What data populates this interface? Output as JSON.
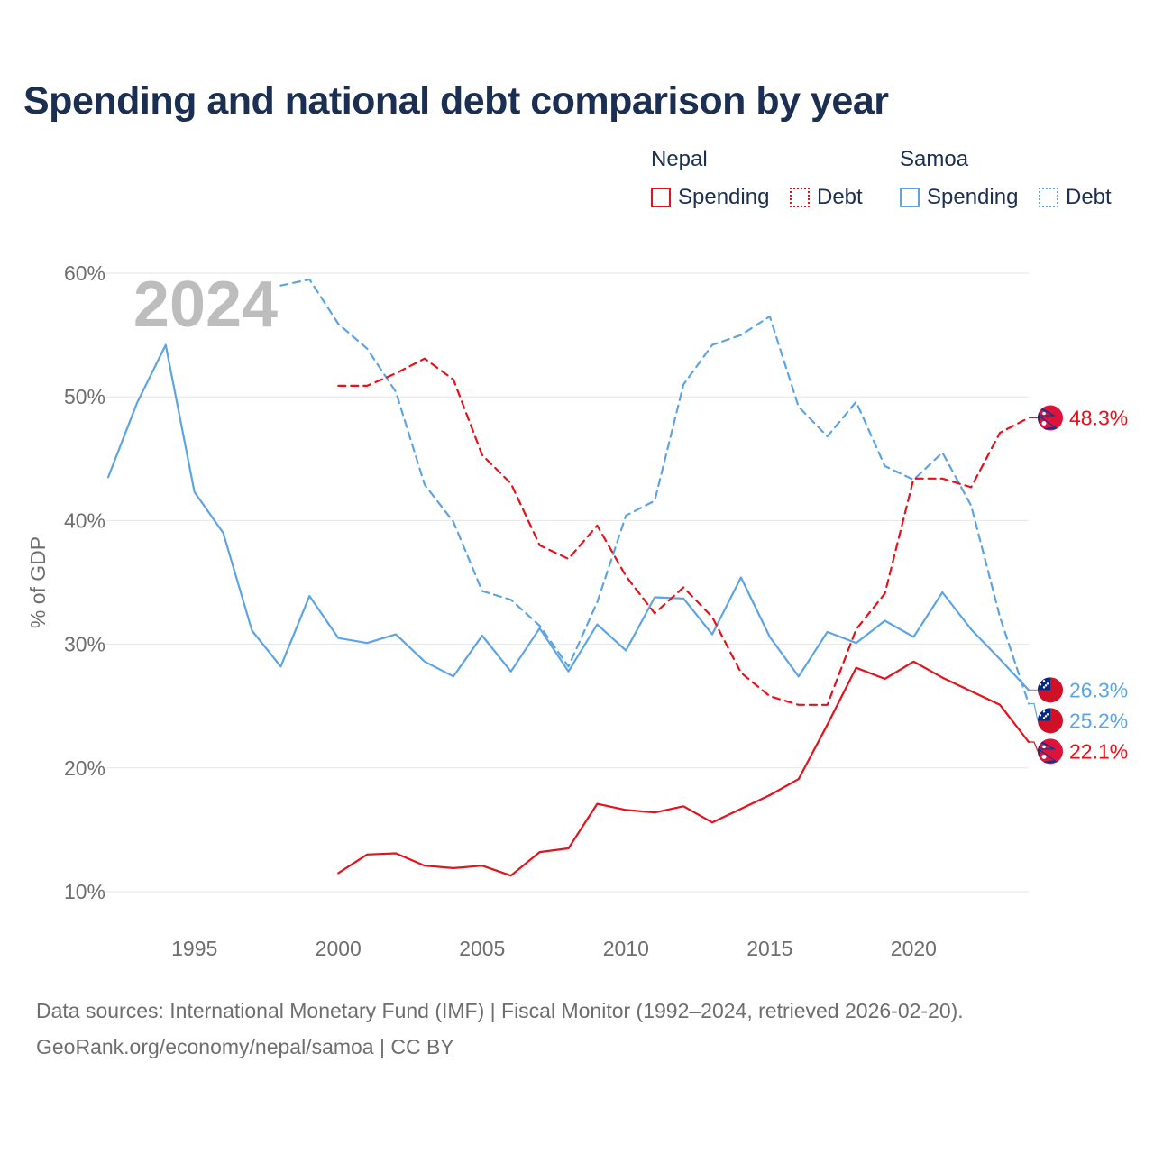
{
  "title": "Spending and national debt comparison by year",
  "legend": {
    "groups": [
      {
        "country": "Nepal",
        "color": "#e8101a",
        "items": [
          {
            "label": "Spending",
            "style": "solid"
          },
          {
            "label": "Debt",
            "style": "dotted"
          }
        ]
      },
      {
        "country": "Samoa",
        "color": "#5da4e3",
        "items": [
          {
            "label": "Spending",
            "style": "solid"
          },
          {
            "label": "Debt",
            "style": "dotted"
          }
        ]
      }
    ]
  },
  "chart_data": {
    "type": "line",
    "title": "Spending and national debt comparison by year",
    "year_watermark": "2024",
    "ylabel": "% of GDP",
    "xlabel": "",
    "xlim": [
      1992,
      2024
    ],
    "ylim": [
      10,
      60
    ],
    "xticks": [
      1995,
      2000,
      2005,
      2010,
      2015,
      2020
    ],
    "yticks": [
      10,
      20,
      30,
      40,
      50,
      60
    ],
    "ytick_labels": [
      "10%",
      "20%",
      "30%",
      "40%",
      "50%",
      "60%"
    ],
    "grid": true,
    "series": [
      {
        "name": "Samoa Spending",
        "country": "Samoa",
        "color": "#5da4e3",
        "dash": "solid",
        "x": [
          1992,
          1993,
          1994,
          1995,
          1996,
          1997,
          1998,
          1999,
          2000,
          2001,
          2002,
          2003,
          2004,
          2005,
          2006,
          2007,
          2008,
          2009,
          2010,
          2011,
          2012,
          2013,
          2014,
          2015,
          2016,
          2017,
          2018,
          2019,
          2020,
          2021,
          2022,
          2023,
          2024
        ],
        "values": [
          43.5,
          49.5,
          54.2,
          42.3,
          39.0,
          31.1,
          28.2,
          33.9,
          30.5,
          30.1,
          30.8,
          28.6,
          27.4,
          30.7,
          27.8,
          31.3,
          27.8,
          31.6,
          29.5,
          33.8,
          33.7,
          30.8,
          35.4,
          30.6,
          27.4,
          31.0,
          30.1,
          31.9,
          30.6,
          34.2,
          31.2,
          28.8,
          26.3
        ],
        "end_label": "26.3%"
      },
      {
        "name": "Samoa Debt",
        "country": "Samoa",
        "color": "#5da4e3",
        "dash": "dashed",
        "x": [
          1998,
          1999,
          2000,
          2001,
          2002,
          2003,
          2004,
          2005,
          2006,
          2007,
          2008,
          2009,
          2010,
          2011,
          2012,
          2013,
          2014,
          2015,
          2016,
          2017,
          2018,
          2019,
          2020,
          2021,
          2022,
          2023,
          2024
        ],
        "values": [
          59.0,
          59.5,
          55.9,
          53.9,
          50.4,
          42.9,
          39.9,
          34.3,
          33.6,
          31.5,
          28.2,
          33.4,
          40.4,
          41.6,
          51.0,
          54.2,
          55.0,
          56.5,
          49.2,
          46.8,
          49.6,
          44.4,
          43.3,
          45.5,
          41.2,
          32.2,
          25.2
        ],
        "end_label": "25.2%"
      },
      {
        "name": "Nepal Spending",
        "country": "Nepal",
        "color": "#e8101a",
        "dash": "solid",
        "x": [
          2000,
          2001,
          2002,
          2003,
          2004,
          2005,
          2006,
          2007,
          2008,
          2009,
          2010,
          2011,
          2012,
          2013,
          2014,
          2015,
          2016,
          2017,
          2018,
          2019,
          2020,
          2021,
          2022,
          2023,
          2024
        ],
        "values": [
          11.5,
          13.0,
          13.1,
          12.1,
          11.9,
          12.1,
          11.3,
          13.2,
          13.5,
          17.1,
          16.6,
          16.4,
          16.9,
          15.6,
          16.7,
          17.8,
          19.1,
          23.5,
          28.1,
          27.2,
          28.6,
          27.3,
          26.2,
          25.1,
          22.1
        ],
        "end_label": "22.1%"
      },
      {
        "name": "Nepal Debt",
        "country": "Nepal",
        "color": "#e8101a",
        "dash": "dashed",
        "x": [
          2000,
          2001,
          2002,
          2003,
          2004,
          2005,
          2006,
          2007,
          2008,
          2009,
          2010,
          2011,
          2012,
          2013,
          2014,
          2015,
          2016,
          2017,
          2018,
          2019,
          2020,
          2021,
          2022,
          2023,
          2024
        ],
        "values": [
          50.9,
          50.9,
          51.9,
          53.1,
          51.4,
          45.3,
          43.0,
          38.0,
          36.9,
          39.6,
          35.5,
          32.5,
          34.6,
          32.2,
          27.7,
          25.8,
          25.1,
          25.1,
          31.2,
          34.1,
          43.4,
          43.4,
          42.7,
          47.1,
          48.3
        ],
        "end_label": "48.3%"
      }
    ]
  },
  "source_note": "Data sources: International Monetary Fund (IMF) | Fiscal Monitor (1992–2024, retrieved 2026-02-20).",
  "credit": "GeoRank.org/economy/nepal/samoa | CC BY"
}
